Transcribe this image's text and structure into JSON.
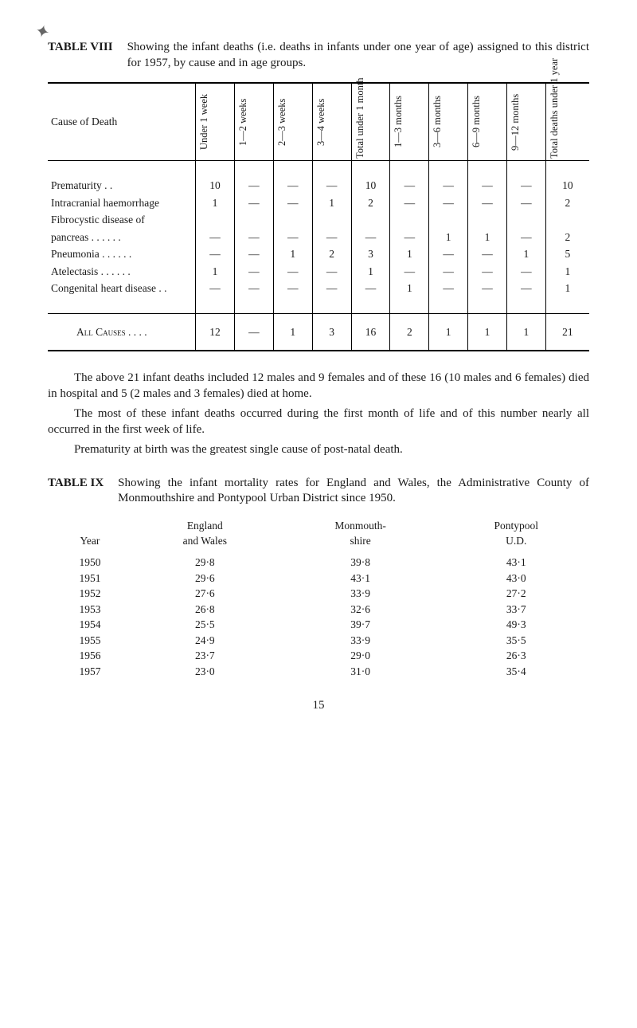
{
  "page": {
    "number": "15"
  },
  "table8": {
    "label": "TABLE VIII",
    "intro": "Showing the infant deaths (i.e. deaths in infants under one year of age) assigned to this district for 1957, by cause and in age groups.",
    "headers": {
      "cause": "Cause of Death",
      "cols": [
        "Under\n1 week",
        "1—2\nweeks",
        "2—3\nweeks",
        "3—4\nweeks",
        "Total under\n1 month",
        "1—3\nmonths",
        "3—6\nmonths",
        "6—9\nmonths",
        "9—12\nmonths",
        "Total deaths\nunder\n1 year"
      ]
    },
    "rows": [
      {
        "cause": "Prematurity     . .",
        "cells": [
          "10",
          "—",
          "—",
          "—",
          "10",
          "—",
          "—",
          "—",
          "—",
          "10"
        ]
      },
      {
        "cause": "Intracranial haemorrhage",
        "cells": [
          "1",
          "—",
          "—",
          "1",
          "2",
          "—",
          "—",
          "—",
          "—",
          "2"
        ]
      },
      {
        "cause": "Fibrocystic disease of",
        "cells": [
          "",
          "",
          "",
          "",
          "",
          "",
          "",
          "",
          "",
          ""
        ]
      },
      {
        "cause": " pancreas . .     . .     . .",
        "cells": [
          "—",
          "—",
          "—",
          "—",
          "—",
          "—",
          "1",
          "1",
          "—",
          "2"
        ]
      },
      {
        "cause": "Pneumonia . .    . .    . .",
        "cells": [
          "—",
          "—",
          "1",
          "2",
          "3",
          "1",
          "—",
          "—",
          "1",
          "5"
        ]
      },
      {
        "cause": "Atelectasis . .     . .     . .",
        "cells": [
          "1",
          "—",
          "—",
          "—",
          "1",
          "—",
          "—",
          "—",
          "—",
          "1"
        ]
      },
      {
        "cause": "Congenital heart disease . .",
        "cells": [
          "—",
          "—",
          "—",
          "—",
          "—",
          "1",
          "—",
          "—",
          "—",
          "1"
        ]
      }
    ],
    "total": {
      "label": "All Causes . .    . .",
      "cells": [
        "12",
        "—",
        "1",
        "3",
        "16",
        "2",
        "1",
        "1",
        "1",
        "21"
      ]
    }
  },
  "paragraphs": {
    "p1": "The above 21 infant deaths included 12 males and 9 females and of these 16 (10 males and 6 females) died in hospital and 5 (2 males and 3 females) died at home.",
    "p2": "The most of these infant deaths occurred during the first month of life and of this number nearly all occurred in the first week of life.",
    "p3": "Prematurity at birth was the greatest single cause of post-natal death."
  },
  "table9": {
    "label": "TABLE IX",
    "intro": "Showing the infant mortality rates for England and Wales, the Administrative County of Monmouthshire and Pontypool Urban District since 1950.",
    "headers": {
      "year": "Year",
      "c1a": "England",
      "c1b": "and Wales",
      "c2a": "Monmouth-",
      "c2b": "shire",
      "c3a": "Pontypool",
      "c3b": "U.D."
    },
    "rows": [
      {
        "y": "1950",
        "a": "29·8",
        "b": "39·8",
        "c": "43·1"
      },
      {
        "y": "1951",
        "a": "29·6",
        "b": "43·1",
        "c": "43·0"
      },
      {
        "y": "1952",
        "a": "27·6",
        "b": "33·9",
        "c": "27·2"
      },
      {
        "y": "1953",
        "a": "26·8",
        "b": "32·6",
        "c": "33·7"
      },
      {
        "y": "1954",
        "a": "25·5",
        "b": "39·7",
        "c": "49·3"
      },
      {
        "y": "1955",
        "a": "24·9",
        "b": "33·9",
        "c": "35·5"
      },
      {
        "y": "1956",
        "a": "23·7",
        "b": "29·0",
        "c": "26·3"
      },
      {
        "y": "1957",
        "a": "23·0",
        "b": "31·0",
        "c": "35·4"
      }
    ]
  }
}
